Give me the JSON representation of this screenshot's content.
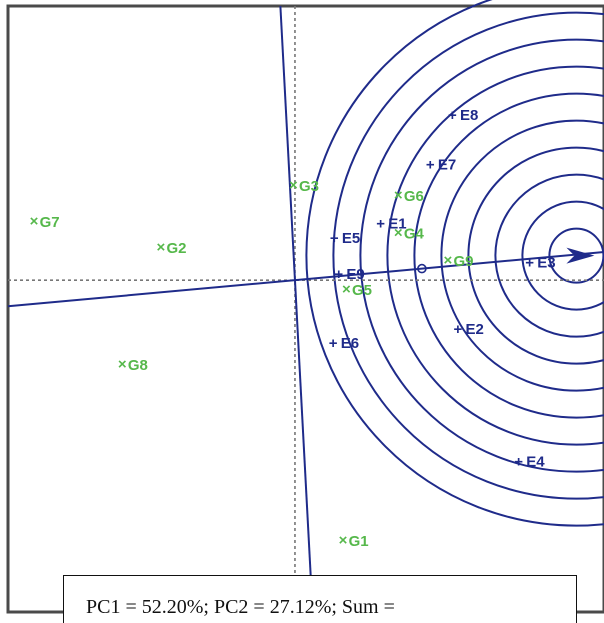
{
  "chart_data": {
    "type": "scatter",
    "title": "",
    "xlabel": "",
    "ylabel": "",
    "grid": false,
    "legend": "none",
    "origin_marker_lines": true,
    "genotypes": [
      {
        "label": "G1",
        "x": 0.45,
        "y": -1.8
      },
      {
        "label": "G2",
        "x": -1.2,
        "y": 0.23
      },
      {
        "label": "G3",
        "x": 0.0,
        "y": 0.66
      },
      {
        "label": "G4",
        "x": 0.95,
        "y": 0.33
      },
      {
        "label": "G5",
        "x": 0.48,
        "y": -0.06
      },
      {
        "label": "G6",
        "x": 0.95,
        "y": 0.59
      },
      {
        "label": "G7",
        "x": -2.35,
        "y": 0.41
      },
      {
        "label": "G8",
        "x": -1.55,
        "y": -0.58
      },
      {
        "label": "G9",
        "x": 1.4,
        "y": 0.14
      }
    ],
    "environments": [
      {
        "label": "E1",
        "x": 0.8,
        "y": 0.4
      },
      {
        "label": "E2",
        "x": 1.5,
        "y": -0.33
      },
      {
        "label": "E3",
        "x": 2.15,
        "y": 0.13
      },
      {
        "label": "E4",
        "x": 2.05,
        "y": -1.25
      },
      {
        "label": "E5",
        "x": 0.38,
        "y": 0.3
      },
      {
        "label": "E6",
        "x": 0.37,
        "y": -0.43
      },
      {
        "label": "E7",
        "x": 1.25,
        "y": 0.81
      },
      {
        "label": "E8",
        "x": 1.45,
        "y": 1.15
      },
      {
        "label": "E9",
        "x": 0.42,
        "y": 0.05
      }
    ],
    "ideal_environment": {
      "x": 2.55,
      "y": 0.17
    },
    "average_environment_coordinate": {
      "x": 1.15,
      "y": 0.08
    },
    "concentric_circles": 10,
    "xlim": [
      -2.6,
      2.8
    ],
    "ylim": [
      -2.3,
      1.9
    ],
    "caption": "PC1 = 52.20%; PC2 = 27.12%; Sum ="
  },
  "colors": {
    "genotype": "#56b84b",
    "environment": "#1f2b8a",
    "axis_lines": "#777777",
    "frame": "#4a4a4a"
  }
}
